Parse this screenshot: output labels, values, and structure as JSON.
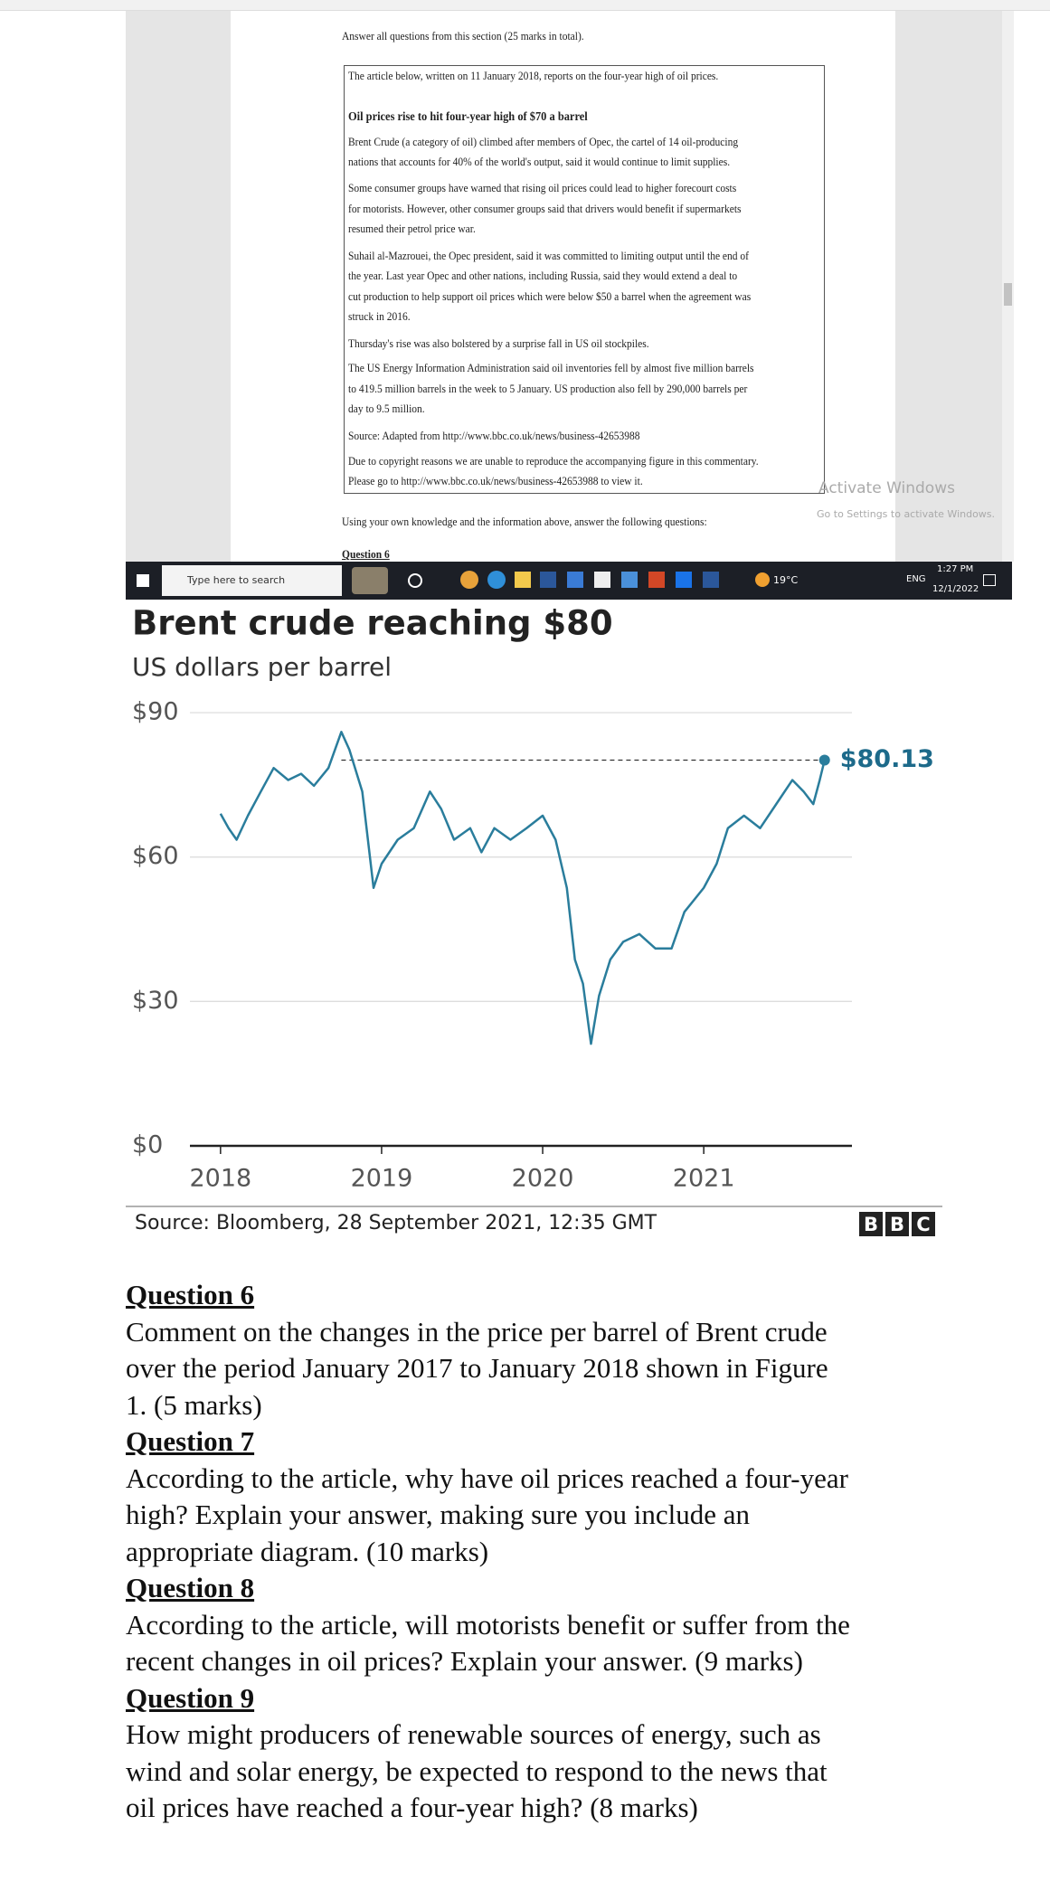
{
  "document": {
    "intro": "Answer all questions from this section (25 marks in total).",
    "article": {
      "lead": "The article below, written on 11 January 2018, reports on the four-year high of oil prices.",
      "headline": "Oil prices rise to hit four-year high of $70 a barrel",
      "paragraphs": [
        [
          "Brent Crude (a category of oil) climbed after members of Opec, the cartel of 14 oil-producing",
          "nations that accounts for 40% of the world's output, said it would continue to limit supplies."
        ],
        [
          "Some consumer groups have warned that rising oil prices could lead to higher forecourt costs",
          "for motorists. However, other consumer groups said that drivers would benefit if supermarkets",
          "resumed their petrol price war."
        ],
        [
          "Suhail al-Mazrouei, the Opec president, said it was committed to limiting output until the end of",
          "the year. Last year Opec and other nations, including Russia, said they would extend a deal to",
          "cut production to help support oil prices which were below $50 a barrel when the agreement was",
          "struck in 2016."
        ],
        [
          "Thursday's rise was also bolstered by a surprise fall in US oil stockpiles."
        ],
        [
          "The US Energy Information Administration said oil inventories fell by almost five million barrels",
          "to 419.5 million barrels in the week to 5 January. US production also fell by 290,000 barrels per",
          "day to 9.5 million."
        ],
        [
          "Source: Adapted from http://www.bbc.co.uk/news/business-42653988"
        ],
        [
          "Due to copyright reasons we are unable to reproduce the accompanying figure in this commentary.",
          "Please go to http://www.bbc.co.uk/news/business-42653988 to view it."
        ]
      ]
    },
    "instruction": "Using your own knowledge and the information above, answer the following questions:",
    "next_heading": "Question 6",
    "watermark": [
      "Activate Windows",
      "Go to Settings to activate Windows."
    ]
  },
  "taskbar": {
    "search": "Type here to search",
    "weather": "19°C",
    "language": "ENG",
    "time": "1:27 PM",
    "date": "12/1/2022"
  },
  "chart_data": {
    "type": "line",
    "title": "Brent crude reaching $80",
    "subtitle": "US dollars per barrel",
    "source": "Source: Bloomberg, 28 September 2021, 12:35 GMT",
    "logo": [
      "B",
      "B",
      "C"
    ],
    "x": [
      2018.0,
      2018.05,
      2018.1,
      2018.17,
      2018.25,
      2018.33,
      2018.42,
      2018.5,
      2018.58,
      2018.67,
      2018.75,
      2018.8,
      2018.88,
      2018.95,
      2019.0,
      2019.1,
      2019.2,
      2019.3,
      2019.37,
      2019.45,
      2019.55,
      2019.62,
      2019.7,
      2019.8,
      2019.9,
      2020.0,
      2020.08,
      2020.15,
      2020.2,
      2020.25,
      2020.3,
      2020.35,
      2020.42,
      2020.5,
      2020.6,
      2020.7,
      2020.8,
      2020.88,
      2021.0,
      2021.08,
      2021.15,
      2021.25,
      2021.35,
      2021.45,
      2021.55,
      2021.62,
      2021.68,
      2021.72,
      2021.75
    ],
    "series": [
      {
        "name": "Brent crude",
        "color": "#2a7d9c",
        "values": [
          69,
          66,
          63.6,
          68.6,
          73.6,
          78.5,
          76,
          77.3,
          74.8,
          78.5,
          86,
          82.3,
          73.6,
          53.6,
          58.6,
          63.6,
          66,
          73.6,
          70,
          63.6,
          66,
          61,
          66,
          63.6,
          66,
          68.6,
          63.6,
          53.6,
          38.7,
          33.7,
          21.2,
          31.2,
          38.7,
          42.4,
          44,
          41,
          41,
          48.6,
          53.6,
          58.6,
          66,
          68.6,
          66,
          71,
          76,
          73.6,
          71,
          76,
          80.13
        ],
        "value_labels": [
          null,
          null,
          null,
          null,
          null,
          null,
          null,
          null,
          null,
          null,
          null,
          null,
          null,
          null,
          null,
          null,
          null,
          null,
          null,
          null,
          null,
          null,
          null,
          null,
          null,
          null,
          null,
          null,
          null,
          null,
          null,
          null,
          null,
          null,
          null,
          null,
          null,
          null,
          null,
          null,
          null,
          null,
          null,
          null,
          null,
          null,
          null,
          null,
          "$80.13"
        ]
      }
    ],
    "xlim": [
      2017.81,
      2021.92
    ],
    "xticks": [
      2018,
      2019,
      2020,
      2021
    ],
    "ylim": [
      0,
      90
    ],
    "yticks": [
      {
        "value": 0,
        "label": "$0"
      },
      {
        "value": 30,
        "label": "$30"
      },
      {
        "value": 60,
        "label": "$60"
      },
      {
        "value": 90,
        "label": "$90"
      }
    ],
    "grid": true
  },
  "questions": [
    {
      "heading": "Question 6",
      "lines": [
        "Comment on the changes in the price per barrel of Brent crude",
        "over the period January 2017 to January 2018 shown in Figure",
        "1. (5 marks)"
      ]
    },
    {
      "heading": "Question 7",
      "lines": [
        "According to the article, why have oil prices reached a four-year",
        "high? Explain your answer, making sure you include an",
        "appropriate diagram. (10 marks)"
      ]
    },
    {
      "heading": "Question 8",
      "lines": [
        "According to the article, will motorists benefit or suffer from the",
        "recent changes in oil prices? Explain your answer. (9 marks)"
      ]
    },
    {
      "heading": "Question 9",
      "lines": [
        "How might producers of renewable sources of energy, such as",
        "wind and solar energy, be expected to respond to the news that",
        "oil prices have reached a four-year high? (8 marks)"
      ]
    }
  ]
}
